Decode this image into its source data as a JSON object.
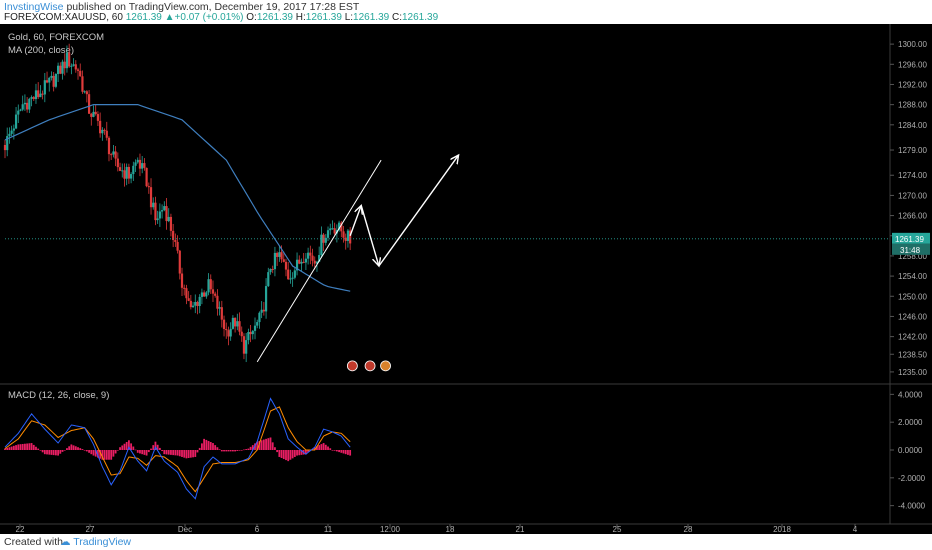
{
  "header": {
    "author": "InvstingWise",
    "published_text": " published on TradingView.com, December 19, 2017 17:28 EST",
    "symbol_line": "FOREXCOM:XAUUSD, 60",
    "last_price": "1261.39",
    "change": "+0.07 (+0.01%)",
    "o_label": "O:",
    "o_value": "1261.39",
    "h_label": "H:",
    "h_value": "1261.39",
    "l_label": "L:",
    "l_value": "1261.39",
    "c_label": "C:",
    "c_value": "1261.39"
  },
  "footer": {
    "created_with": "Created with",
    "brand": "TradingView"
  },
  "colors": {
    "background": "#000000",
    "up_candle": "#26a69a",
    "down_candle": "#e03b3b",
    "ma_line": "#3f7fbf",
    "macd_line": "#2962ff",
    "signal_line": "#ff8c00",
    "histogram": "#e91e63",
    "axis_text": "#b0b0b0",
    "price_label_bg": "#26a69a",
    "annotation": "#ffffff"
  },
  "chart_data": [
    {
      "type": "candlestick",
      "title": "Gold, 60, FOREXCOM",
      "indicator_label": "MA (200, close)",
      "ylim": [
        1233,
        1303
      ],
      "y_ticks": [
        "1300.00",
        "1296.00",
        "1292.00",
        "1288.00",
        "1284.00",
        "1279.00",
        "1274.00",
        "1270.00",
        "1266.00",
        "1262.00",
        "1258.00",
        "1254.00",
        "1250.00",
        "1246.00",
        "1242.00",
        "1238.50",
        "1235.00"
      ],
      "x_ticks": [
        "22",
        "27",
        "Dec",
        "6",
        "11",
        "12:00",
        "18",
        "21",
        "25",
        "28",
        "2018",
        "4"
      ],
      "current_price_label": "1261.39",
      "countdown_label": "31:48",
      "approx_close_path": [
        [
          0,
          1280
        ],
        [
          8,
          1288
        ],
        [
          15,
          1290
        ],
        [
          22,
          1293
        ],
        [
          28,
          1297
        ],
        [
          33,
          1295
        ],
        [
          38,
          1287
        ],
        [
          44,
          1283
        ],
        [
          50,
          1276
        ],
        [
          56,
          1274
        ],
        [
          60,
          1277
        ],
        [
          64,
          1273
        ],
        [
          68,
          1265
        ],
        [
          72,
          1268
        ],
        [
          76,
          1262
        ],
        [
          80,
          1253
        ],
        [
          84,
          1247
        ],
        [
          88,
          1250
        ],
        [
          92,
          1252
        ],
        [
          96,
          1248
        ],
        [
          100,
          1243
        ],
        [
          104,
          1245
        ],
        [
          108,
          1240
        ],
        [
          112,
          1243
        ],
        [
          116,
          1246
        ],
        [
          120,
          1256
        ],
        [
          124,
          1258
        ],
        [
          128,
          1254
        ],
        [
          132,
          1256
        ],
        [
          136,
          1259
        ],
        [
          140,
          1257
        ],
        [
          144,
          1262
        ],
        [
          148,
          1264
        ],
        [
          152,
          1263
        ],
        [
          156,
          1261
        ]
      ],
      "ma_path": [
        [
          0,
          1281
        ],
        [
          20,
          1285
        ],
        [
          40,
          1288
        ],
        [
          60,
          1288
        ],
        [
          80,
          1285
        ],
        [
          100,
          1277
        ],
        [
          115,
          1266
        ],
        [
          130,
          1256
        ],
        [
          145,
          1252
        ],
        [
          156,
          1251
        ]
      ]
    },
    {
      "type": "line",
      "title": "MACD (12, 26, close, 9)",
      "ylim": [
        -4.6,
        4.6
      ],
      "y_ticks": [
        "4.0000",
        "2.0000",
        "0.0000",
        "-2.0000",
        "-4.0000"
      ],
      "series": [
        {
          "name": "MACD",
          "points": [
            [
              0,
              0.2
            ],
            [
              6,
              1.2
            ],
            [
              12,
              2.6
            ],
            [
              18,
              1.5
            ],
            [
              24,
              0.5
            ],
            [
              30,
              1.8
            ],
            [
              36,
              1.6
            ],
            [
              40,
              0.4
            ],
            [
              44,
              -1.2
            ],
            [
              48,
              -2.5
            ],
            [
              52,
              -1.5
            ],
            [
              56,
              0.2
            ],
            [
              60,
              -0.8
            ],
            [
              64,
              -1.5
            ],
            [
              68,
              0.2
            ],
            [
              72,
              -0.8
            ],
            [
              78,
              -1.6
            ],
            [
              82,
              -2.8
            ],
            [
              86,
              -3.5
            ],
            [
              90,
              -1.2
            ],
            [
              94,
              -0.5
            ],
            [
              98,
              -1.0
            ],
            [
              104,
              -1.0
            ],
            [
              110,
              -0.6
            ],
            [
              114,
              0.6
            ],
            [
              120,
              3.7
            ],
            [
              124,
              2.6
            ],
            [
              128,
              0.8
            ],
            [
              132,
              0.2
            ],
            [
              136,
              -0.3
            ],
            [
              140,
              0.2
            ],
            [
              144,
              1.5
            ],
            [
              148,
              1.3
            ],
            [
              152,
              1.0
            ],
            [
              156,
              0.2
            ]
          ]
        },
        {
          "name": "Signal",
          "points": [
            [
              0,
              0.1
            ],
            [
              6,
              0.8
            ],
            [
              12,
              2.1
            ],
            [
              18,
              1.8
            ],
            [
              24,
              0.9
            ],
            [
              30,
              1.4
            ],
            [
              36,
              1.6
            ],
            [
              40,
              0.8
            ],
            [
              44,
              -0.5
            ],
            [
              48,
              -1.8
            ],
            [
              52,
              -1.7
            ],
            [
              56,
              -0.5
            ],
            [
              60,
              -0.6
            ],
            [
              64,
              -1.1
            ],
            [
              68,
              -0.4
            ],
            [
              72,
              -0.5
            ],
            [
              78,
              -1.2
            ],
            [
              82,
              -2.2
            ],
            [
              86,
              -3.0
            ],
            [
              90,
              -2.0
            ],
            [
              94,
              -1.0
            ],
            [
              98,
              -0.9
            ],
            [
              104,
              -0.9
            ],
            [
              110,
              -0.7
            ],
            [
              114,
              0.0
            ],
            [
              120,
              2.8
            ],
            [
              124,
              3.1
            ],
            [
              128,
              1.6
            ],
            [
              132,
              0.6
            ],
            [
              136,
              0.0
            ],
            [
              140,
              0.0
            ],
            [
              144,
              1.0
            ],
            [
              148,
              1.3
            ],
            [
              152,
              1.2
            ],
            [
              156,
              0.6
            ]
          ]
        }
      ]
    }
  ]
}
